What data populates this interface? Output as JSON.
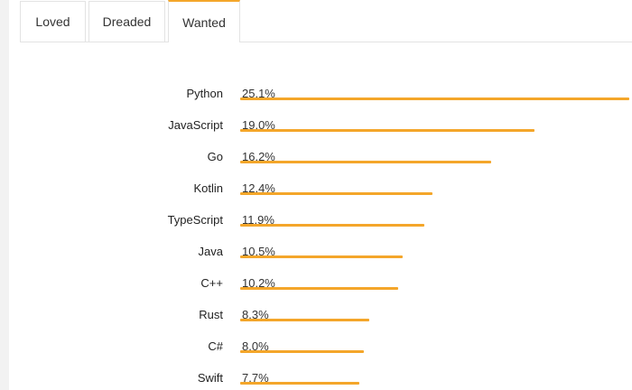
{
  "tabs": [
    {
      "label": "Loved"
    },
    {
      "label": "Dreaded"
    },
    {
      "label": "Wanted"
    }
  ],
  "active_tab": "Wanted",
  "colors": {
    "accent": "#f4a62a",
    "bar": "#f4a62a"
  },
  "chart_data": {
    "type": "bar",
    "orientation": "horizontal",
    "categories": [
      "Python",
      "JavaScript",
      "Go",
      "Kotlin",
      "TypeScript",
      "Java",
      "C++",
      "Rust",
      "C#",
      "Swift"
    ],
    "values": [
      25.1,
      19.0,
      16.2,
      12.4,
      11.9,
      10.5,
      10.2,
      8.3,
      8.0,
      7.7
    ],
    "value_labels": [
      "25.1%",
      "19.0%",
      "16.2%",
      "12.4%",
      "11.9%",
      "10.5%",
      "10.2%",
      "8.3%",
      "8.0%",
      "7.7%"
    ],
    "title": "",
    "xlabel": "",
    "ylabel": "",
    "xlim": [
      0,
      25.1
    ],
    "grid": false
  }
}
